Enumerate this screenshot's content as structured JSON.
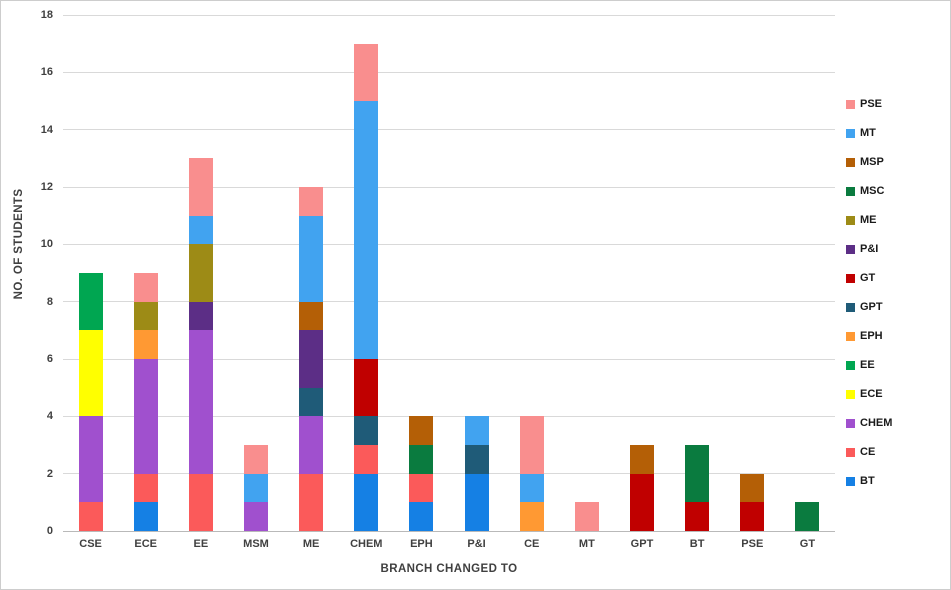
{
  "chart_data": {
    "type": "stacked-bar",
    "title": "",
    "xlabel": "BRANCH CHANGED TO",
    "ylabel": "NO. OF STUDENTS",
    "ylim": [
      0,
      18
    ],
    "ytick_step": 2,
    "yticks": [
      0,
      2,
      4,
      6,
      8,
      10,
      12,
      14,
      16,
      18
    ],
    "grid": true,
    "legend_position": "right",
    "categories": [
      "CSE",
      "ECE",
      "EE",
      "MSM",
      "ME",
      "CHEM",
      "EPH",
      "P&I",
      "CE",
      "MT",
      "GPT",
      "BT",
      "PSE",
      "GT"
    ],
    "series": [
      {
        "name": "BT",
        "color": "#1580E4",
        "values": [
          0,
          1,
          0,
          0,
          0,
          2,
          1,
          2,
          0,
          0,
          0,
          0,
          0,
          0
        ]
      },
      {
        "name": "CE",
        "color": "#FB5A5A",
        "values": [
          1,
          1,
          2,
          0,
          2,
          1,
          1,
          0,
          0,
          0,
          0,
          0,
          0,
          0
        ]
      },
      {
        "name": "CHEM",
        "color": "#A050CE",
        "values": [
          3,
          4,
          5,
          1,
          2,
          0,
          0,
          0,
          0,
          0,
          0,
          0,
          0,
          0
        ]
      },
      {
        "name": "ECE",
        "color": "#FFFF00",
        "values": [
          3,
          0,
          0,
          0,
          0,
          0,
          0,
          0,
          0,
          0,
          0,
          0,
          0,
          0
        ]
      },
      {
        "name": "EE",
        "color": "#00A651",
        "values": [
          2,
          0,
          0,
          0,
          0,
          0,
          0,
          0,
          0,
          0,
          0,
          0,
          0,
          0
        ]
      },
      {
        "name": "EPH",
        "color": "#FF9933",
        "values": [
          0,
          1,
          0,
          0,
          0,
          0,
          0,
          0,
          1,
          0,
          0,
          0,
          0,
          0
        ]
      },
      {
        "name": "GPT",
        "color": "#1F5B78",
        "values": [
          0,
          0,
          0,
          0,
          1,
          1,
          0,
          1,
          0,
          0,
          0,
          0,
          0,
          0
        ]
      },
      {
        "name": "GT",
        "color": "#C00000",
        "values": [
          0,
          0,
          0,
          0,
          0,
          2,
          0,
          0,
          0,
          0,
          2,
          1,
          1,
          0
        ]
      },
      {
        "name": "P&I",
        "color": "#5C2E86",
        "values": [
          0,
          0,
          1,
          0,
          2,
          0,
          0,
          0,
          0,
          0,
          0,
          0,
          0,
          0
        ]
      },
      {
        "name": "ME",
        "color": "#9D8B16",
        "values": [
          0,
          1,
          2,
          0,
          0,
          0,
          0,
          0,
          0,
          0,
          0,
          0,
          0,
          0
        ]
      },
      {
        "name": "MSC",
        "color": "#0A7B3F",
        "values": [
          0,
          0,
          0,
          0,
          0,
          0,
          1,
          0,
          0,
          0,
          0,
          2,
          0,
          1
        ]
      },
      {
        "name": "MSP",
        "color": "#B45F06",
        "values": [
          0,
          0,
          0,
          0,
          1,
          0,
          1,
          0,
          0,
          0,
          1,
          0,
          1,
          0
        ]
      },
      {
        "name": "MT",
        "color": "#41A3F0",
        "values": [
          0,
          0,
          1,
          1,
          3,
          9,
          0,
          1,
          1,
          0,
          0,
          0,
          0,
          0
        ]
      },
      {
        "name": "PSE",
        "color": "#F98E8E",
        "values": [
          0,
          1,
          2,
          1,
          1,
          2,
          0,
          0,
          2,
          1,
          0,
          0,
          0,
          0
        ]
      }
    ],
    "legend": [
      "PSE",
      "MT",
      "MSP",
      "MSC",
      "ME",
      "P&I",
      "GT",
      "GPT",
      "EPH",
      "EE",
      "ECE",
      "CHEM",
      "CE",
      "BT"
    ]
  }
}
